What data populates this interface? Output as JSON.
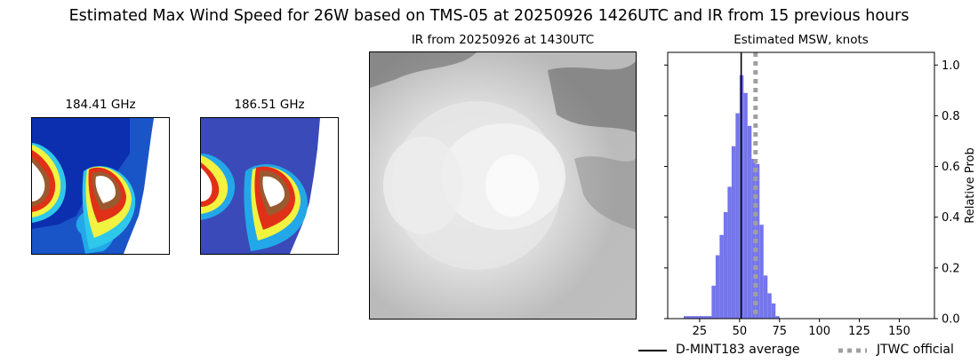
{
  "figure": {
    "title": "Estimated Max Wind Speed for 26W based on TMS-05 at 20250926 1426UTC and IR from 15 previous hours"
  },
  "panels": {
    "mw1_title": "184.41 GHz",
    "mw2_title": "186.51 GHz",
    "ir_title": "IR from 20250926 at 1430UTC",
    "hist_title": "Estimated MSW, knots"
  },
  "chart_data": {
    "type": "bar",
    "title": "Estimated MSW, knots",
    "xlabel": "",
    "ylabel": "Relative Prob",
    "xlim": [
      5,
      172
    ],
    "ylim": [
      0,
      1.05
    ],
    "x_ticks": [
      25,
      50,
      75,
      100,
      125,
      150
    ],
    "y_ticks": [
      0.0,
      0.2,
      0.4,
      0.6,
      0.8,
      1.0
    ],
    "y_axis_side": "right",
    "bin_width": 2.5,
    "bin_starts": [
      15,
      17.5,
      20,
      22.5,
      25,
      27.5,
      30,
      32.5,
      35,
      37.5,
      40,
      42.5,
      45,
      47.5,
      50,
      52.5,
      55,
      57.5,
      60,
      62.5,
      65,
      67.5,
      70,
      72.5
    ],
    "values": [
      0.01,
      0.01,
      0.01,
      0.01,
      0.01,
      0.01,
      0.01,
      0.13,
      0.25,
      0.33,
      0.42,
      0.52,
      0.68,
      0.81,
      0.96,
      0.89,
      0.76,
      0.63,
      0.61,
      0.37,
      0.17,
      0.1,
      0.06,
      0.01
    ],
    "series": [
      {
        "name": "D-MINT183 average",
        "type": "vline",
        "x": 51,
        "color": "#000000"
      },
      {
        "name": "JTWC official",
        "type": "vline",
        "x": 60,
        "color": "#a0a0a0"
      }
    ],
    "bar_color": "#7575ec",
    "legend_location": "bottom-right"
  },
  "legend": {
    "items": [
      "D-MINT183 average",
      "JTWC official"
    ]
  }
}
